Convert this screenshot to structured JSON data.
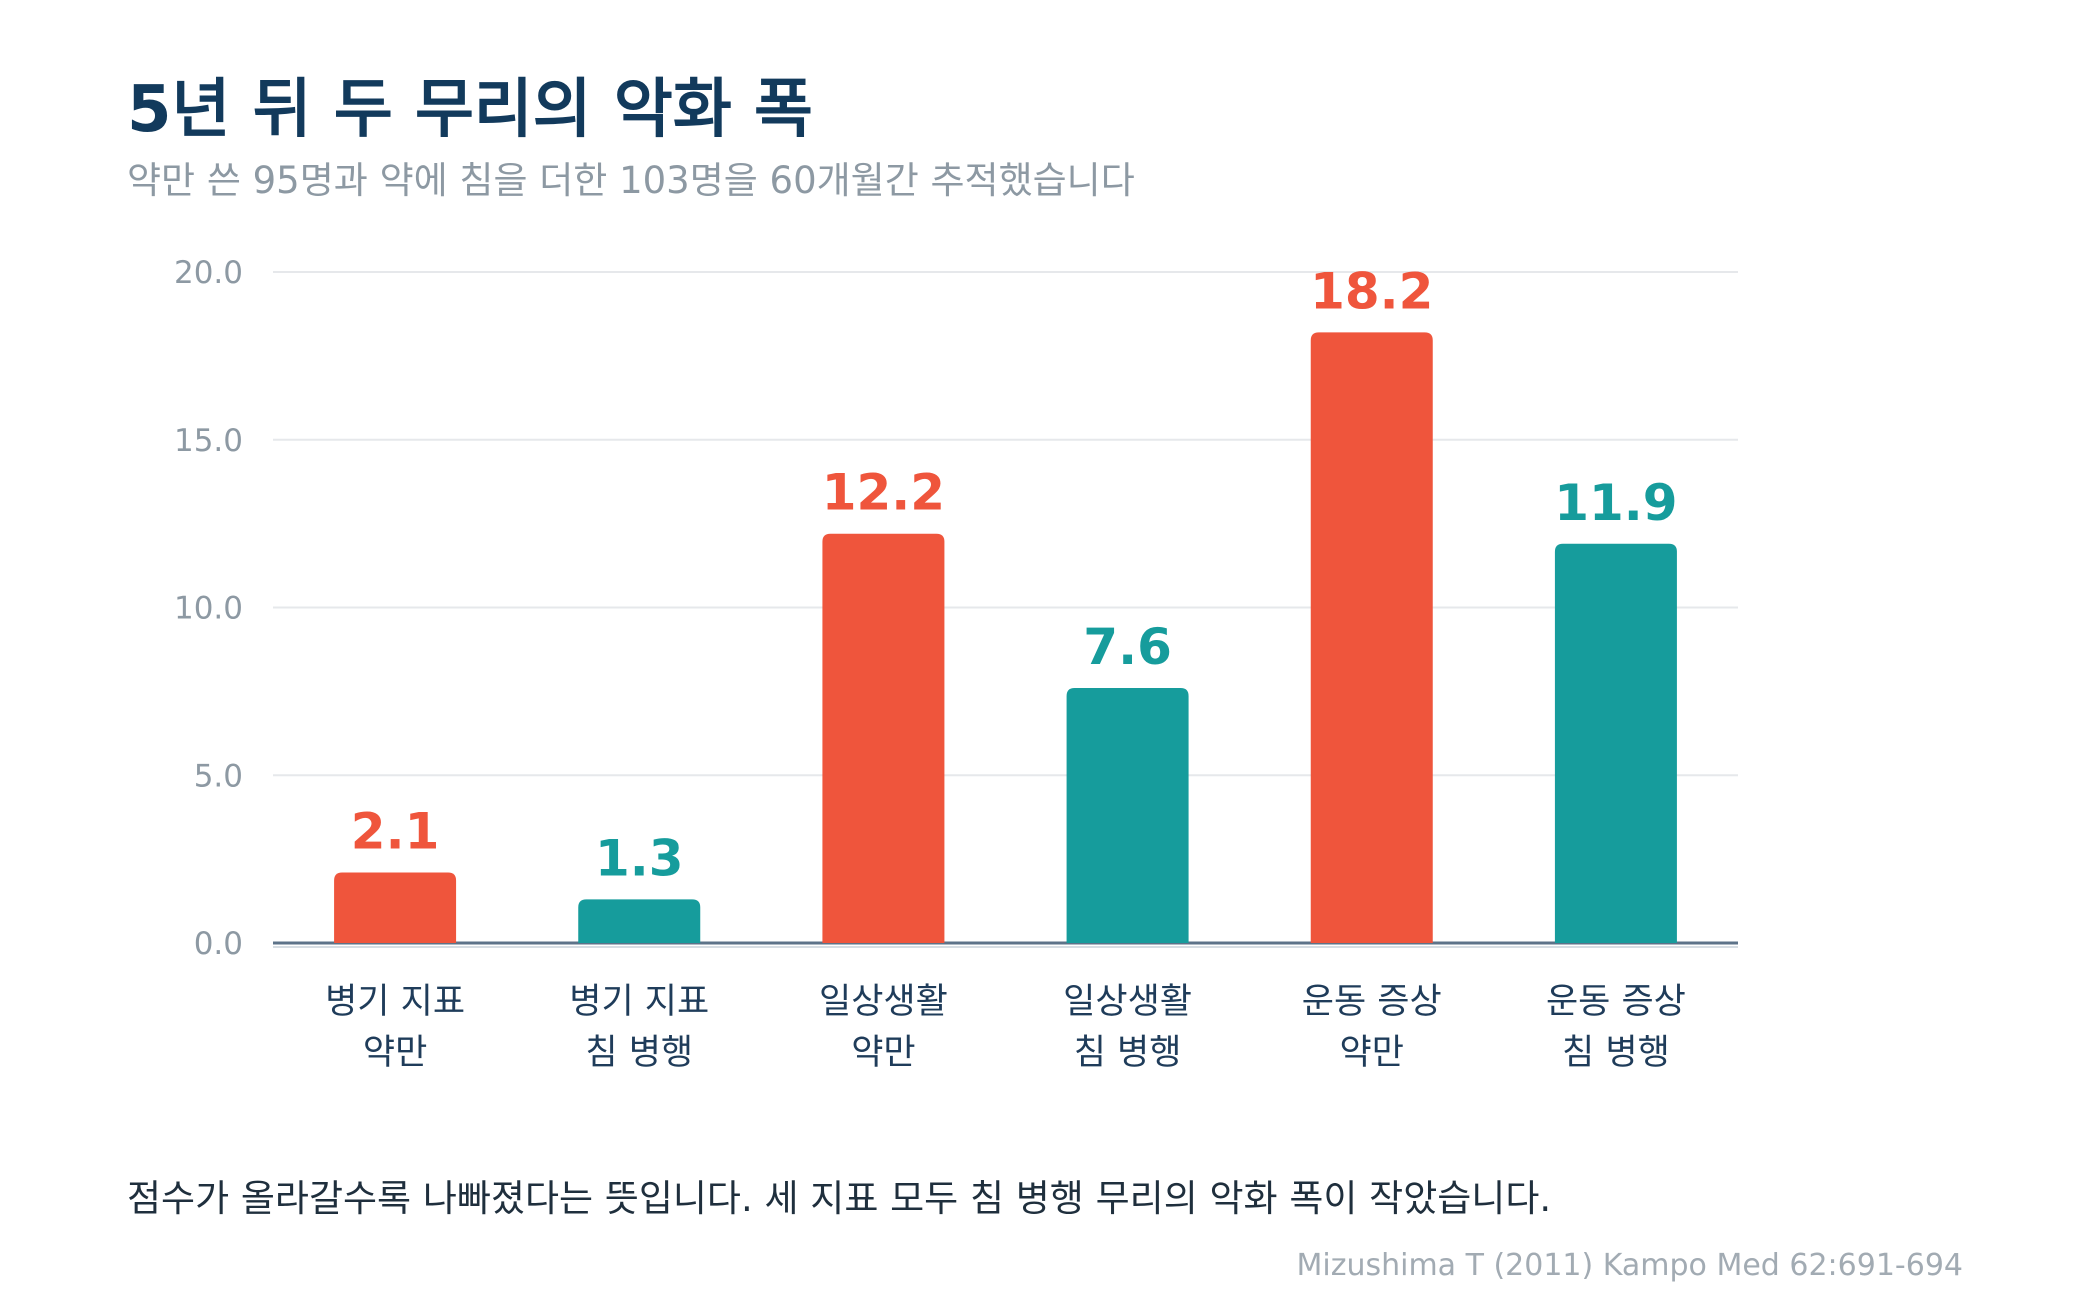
{
  "title": "5년 뒤 두 무리의 악화 폭",
  "subtitle": "약만 쓴 95명과 약에 침을 더한 103명을 60개월간 추적했습니다",
  "note": "점수가 올라갈수록 나빠졌다는 뜻입니다. 세 지표 모두 침 병행 무리의 악화 폭이 작았습니다.",
  "source": "Mizushima T (2011) Kampo Med 62:691-694",
  "colors": {
    "drug_only": "#ef553c",
    "acupuncture": "#169c9c",
    "grid": "#e6e8eb",
    "axis": "#5d7389",
    "tick_label": "#8d99a3",
    "category_label": "#1f3c5a"
  },
  "chart_data": {
    "type": "bar",
    "title": "5년 뒤 두 무리의 악화 폭",
    "ylim": [
      0,
      20
    ],
    "yticks": [
      "0.0",
      "5.0",
      "10.0",
      "15.0",
      "20.0"
    ],
    "grid": true,
    "categories": [
      [
        "병기 지표",
        "약만"
      ],
      [
        "병기 지표",
        "침 병행"
      ],
      [
        "일상생활",
        "약만"
      ],
      [
        "일상생활",
        "침 병행"
      ],
      [
        "운동 증상",
        "약만"
      ],
      [
        "운동 증상",
        "침 병행"
      ]
    ],
    "values": [
      2.1,
      1.3,
      12.2,
      7.6,
      18.2,
      11.9
    ],
    "value_labels": [
      "2.1",
      "1.3",
      "12.2",
      "7.6",
      "18.2",
      "11.9"
    ],
    "groups": [
      "drug_only",
      "acupuncture",
      "drug_only",
      "acupuncture",
      "drug_only",
      "acupuncture"
    ]
  }
}
